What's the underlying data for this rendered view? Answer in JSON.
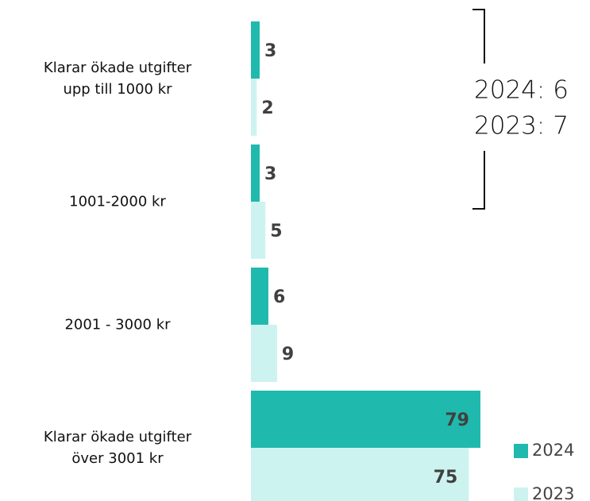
{
  "chart_data": {
    "type": "bar",
    "orientation": "horizontal",
    "categories": [
      "Klarar ökade utgifter\nupp till 1000 kr",
      "1001-2000 kr",
      "2001 - 3000 kr",
      "Klarar ökade utgifter\növer 3001 kr"
    ],
    "series": [
      {
        "name": "2024",
        "color": "#20b9ad",
        "values": [
          3,
          3,
          6,
          79
        ]
      },
      {
        "name": "2023",
        "color": "#cdf3f0",
        "values": [
          2,
          5,
          9,
          75
        ]
      }
    ],
    "annotations": [
      "2024: 6",
      "2023: 7"
    ],
    "legend": "bottom-right"
  }
}
